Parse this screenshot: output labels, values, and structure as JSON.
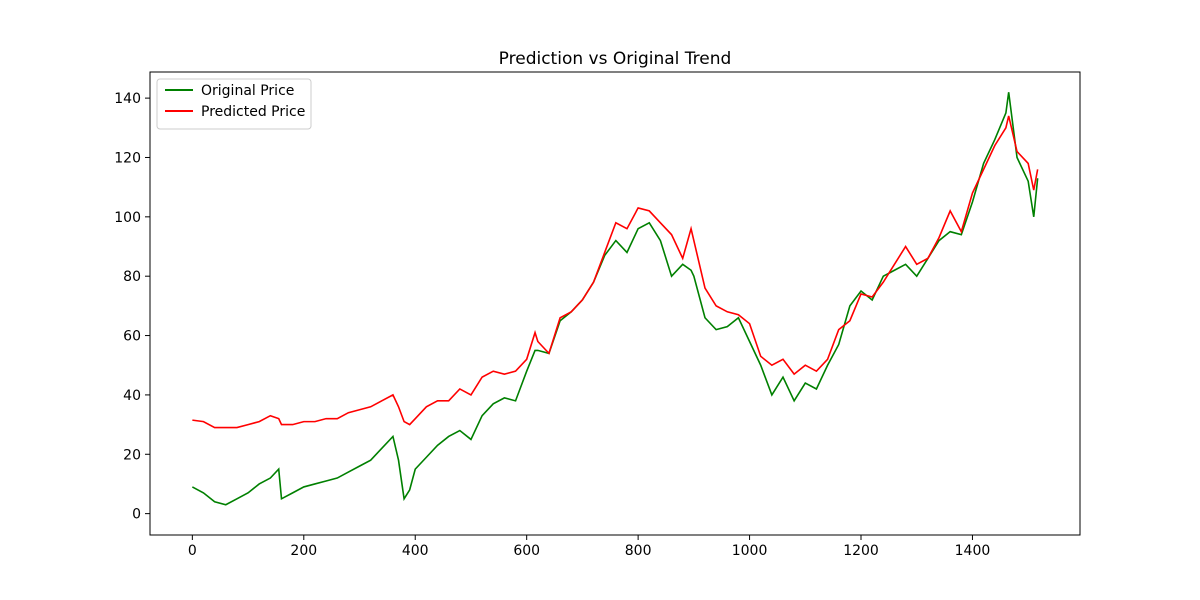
{
  "chart_data": {
    "type": "line",
    "title": "Prediction vs Original Trend",
    "x": [
      0,
      20,
      40,
      60,
      80,
      100,
      120,
      140,
      155,
      160,
      180,
      200,
      220,
      240,
      260,
      280,
      300,
      320,
      340,
      360,
      370,
      380,
      390,
      400,
      420,
      440,
      460,
      480,
      500,
      520,
      540,
      560,
      580,
      600,
      615,
      620,
      640,
      660,
      680,
      700,
      720,
      740,
      760,
      780,
      800,
      820,
      840,
      860,
      880,
      895,
      900,
      920,
      940,
      960,
      980,
      1000,
      1020,
      1040,
      1060,
      1080,
      1100,
      1120,
      1140,
      1160,
      1180,
      1200,
      1220,
      1240,
      1260,
      1280,
      1300,
      1320,
      1340,
      1360,
      1380,
      1400,
      1420,
      1440,
      1460,
      1465,
      1480,
      1500,
      1510,
      1517
    ],
    "series": [
      {
        "name": "Original Price",
        "color": "#008000",
        "values": [
          9,
          7,
          4,
          3,
          5,
          7,
          10,
          12,
          15,
          5,
          7,
          9,
          10,
          11,
          12,
          14,
          16,
          18,
          22,
          26,
          18,
          5,
          8,
          15,
          19,
          23,
          26,
          28,
          25,
          33,
          37,
          39,
          38,
          48,
          55,
          55,
          54,
          65,
          68,
          72,
          78,
          87,
          92,
          88,
          96,
          98,
          92,
          80,
          84,
          82,
          80,
          66,
          62,
          63,
          66,
          58,
          50,
          40,
          46,
          38,
          44,
          42,
          50,
          57,
          70,
          75,
          72,
          80,
          82,
          84,
          80,
          86,
          92,
          95,
          94,
          105,
          118,
          126,
          135,
          142,
          120,
          112,
          100,
          113
        ]
      },
      {
        "name": "Predicted Price",
        "color": "#ff0000",
        "values": [
          31.5,
          31,
          29,
          29,
          29,
          30,
          31,
          33,
          32,
          30,
          30,
          31,
          31,
          32,
          32,
          34,
          35,
          36,
          38,
          40,
          36,
          31,
          30,
          32,
          36,
          38,
          38,
          42,
          40,
          46,
          48,
          47,
          48,
          52,
          61,
          58,
          54,
          66,
          68,
          72,
          78,
          88,
          98,
          96,
          103,
          102,
          98,
          94,
          86,
          96,
          92,
          76,
          70,
          68,
          67,
          64,
          53,
          50,
          52,
          47,
          50,
          48,
          52,
          62,
          65,
          74,
          73,
          78,
          84,
          90,
          84,
          86,
          93,
          102,
          95,
          108,
          116,
          124,
          130,
          134,
          122,
          118,
          109,
          116
        ]
      }
    ],
    "xlim": [
      -76,
      1593
    ],
    "ylim": [
      -7.2,
      148.8
    ],
    "xticks": [
      0,
      200,
      400,
      600,
      800,
      1000,
      1200,
      1400
    ],
    "yticks": [
      0,
      20,
      40,
      60,
      80,
      100,
      120,
      140
    ],
    "legend": "upper left",
    "grid": false
  }
}
